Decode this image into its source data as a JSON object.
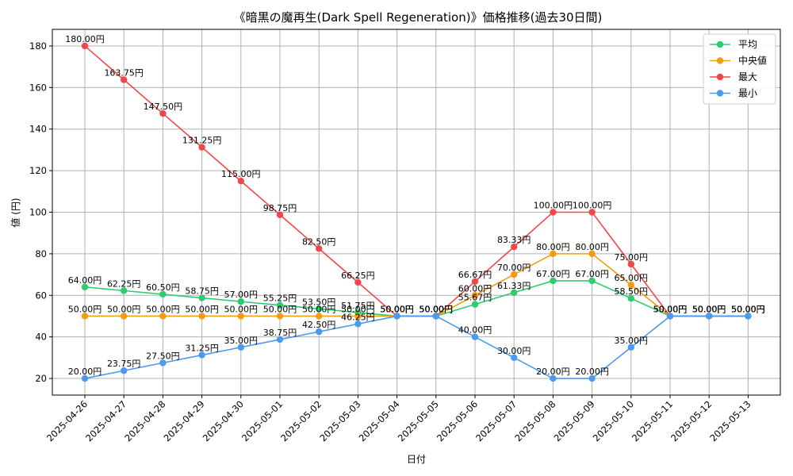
{
  "chart_data": {
    "type": "line",
    "title": "《暗黒の魔再生(Dark Spell Regeneration)》価格推移(過去30日間)",
    "xlabel": "日付",
    "ylabel": "値 (円)",
    "ylim": [
      12,
      188
    ],
    "yticks": [
      20,
      40,
      60,
      80,
      100,
      120,
      140,
      160,
      180
    ],
    "ytick_labels": [
      "20",
      "40",
      "60",
      "80",
      "100",
      "120",
      "140",
      "160",
      "180"
    ],
    "grid": true,
    "legend_position": "top-right",
    "value_suffix": "円",
    "categories": [
      "2025-04-26",
      "2025-04-27",
      "2025-04-28",
      "2025-04-29",
      "2025-04-30",
      "2025-05-01",
      "2025-05-02",
      "2025-05-03",
      "2025-05-04",
      "2025-05-05",
      "2025-05-06",
      "2025-05-07",
      "2025-05-08",
      "2025-05-09",
      "2025-05-10",
      "2025-05-11",
      "2025-05-12",
      "2025-05-13"
    ],
    "series": [
      {
        "name": "平均",
        "color": "#2ecc71",
        "values": [
          64.0,
          62.25,
          60.5,
          58.75,
          57.0,
          55.25,
          53.5,
          51.75,
          50.0,
          50.0,
          55.67,
          61.33,
          67.0,
          67.0,
          58.5,
          50.0,
          50.0,
          50.0
        ],
        "labels": [
          "64.00円",
          "62.25円",
          "60.50円",
          "58.75円",
          "57.00円",
          "55.25円",
          "53.50円",
          "51.75円",
          "50.00円",
          "50.00円",
          "55.67円",
          "61.33円",
          "67.00円",
          "67.00円",
          "58.50円",
          "50.00円",
          "50.00円",
          "50.00円"
        ]
      },
      {
        "name": "中央値",
        "color": "#f39c12",
        "values": [
          50.0,
          50.0,
          50.0,
          50.0,
          50.0,
          50.0,
          50.0,
          50.0,
          50.0,
          50.0,
          60.0,
          70.0,
          80.0,
          80.0,
          65.0,
          50.0,
          50.0,
          50.0
        ],
        "labels": [
          "50.00円",
          "50.00円",
          "50.00円",
          "50.00円",
          "50.00円",
          "50.00円",
          "50.00円",
          "50.00円",
          "50.00円",
          "50.00円",
          "60.00円",
          "70.00円",
          "80.00円",
          "80.00円",
          "65.00円",
          "50.00円",
          "50.00円",
          "50.00円"
        ]
      },
      {
        "name": "最大",
        "color": "#f0484a",
        "values": [
          180.0,
          163.75,
          147.5,
          131.25,
          115.0,
          98.75,
          82.5,
          66.25,
          50.0,
          50.0,
          66.67,
          83.33,
          100.0,
          100.0,
          75.0,
          50.0,
          50.0,
          50.0
        ],
        "labels": [
          "180.00円",
          "163.75円",
          "147.50円",
          "131.25円",
          "115.00円",
          "98.75円",
          "82.50円",
          "66.25円",
          "50.00円",
          "50.00円",
          "66.67円",
          "83.33円",
          "100.00円",
          "100.00円",
          "75.00円",
          "50.00円",
          "50.00円",
          "50.00円"
        ]
      },
      {
        "name": "最小",
        "color": "#4a9af0",
        "values": [
          20.0,
          23.75,
          27.5,
          31.25,
          35.0,
          38.75,
          42.5,
          46.25,
          50.0,
          50.0,
          40.0,
          30.0,
          20.0,
          20.0,
          35.0,
          50.0,
          50.0,
          50.0
        ],
        "labels": [
          "20.00円",
          "23.75円",
          "27.50円",
          "31.25円",
          "35.00円",
          "38.75円",
          "42.50円",
          "46.25円",
          "50.00円",
          "50.00円",
          "40.00円",
          "30.00円",
          "20.00円",
          "20.00円",
          "35.00円",
          "50.00円",
          "50.00円",
          "50.00円"
        ]
      }
    ]
  }
}
